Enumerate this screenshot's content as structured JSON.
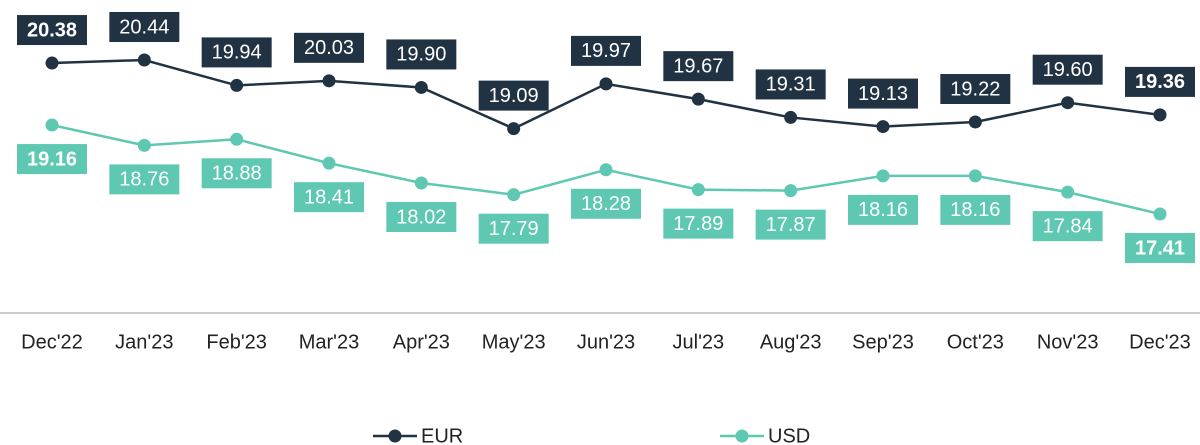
{
  "chart_data": {
    "type": "line",
    "categories": [
      "Dec'22",
      "Jan'23",
      "Feb'23",
      "Mar'23",
      "Apr'23",
      "May'23",
      "Jun'23",
      "Jul'23",
      "Aug'23",
      "Sep'23",
      "Oct'23",
      "Nov'23",
      "Dec'23"
    ],
    "series": [
      {
        "name": "EUR",
        "color": "#213243",
        "values": [
          20.38,
          20.44,
          19.94,
          20.03,
          19.9,
          19.09,
          19.97,
          19.67,
          19.31,
          19.13,
          19.22,
          19.6,
          19.36
        ],
        "value_labels": [
          "20.38",
          "20.44",
          "19.94",
          "20.03",
          "19.90",
          "19.09",
          "19.97",
          "19.67",
          "19.31",
          "19.13",
          "19.22",
          "19.60",
          "19.36"
        ]
      },
      {
        "name": "USD",
        "color": "#5ec8b3",
        "values": [
          19.16,
          18.76,
          18.88,
          18.41,
          18.02,
          17.79,
          18.28,
          17.89,
          17.87,
          18.16,
          18.16,
          17.84,
          17.41
        ],
        "value_labels": [
          "19.16",
          "18.76",
          "18.88",
          "18.41",
          "18.02",
          "17.79",
          "18.28",
          "17.89",
          "17.87",
          "18.16",
          "18.16",
          "17.84",
          "17.41"
        ]
      }
    ],
    "legend": "bottom"
  }
}
